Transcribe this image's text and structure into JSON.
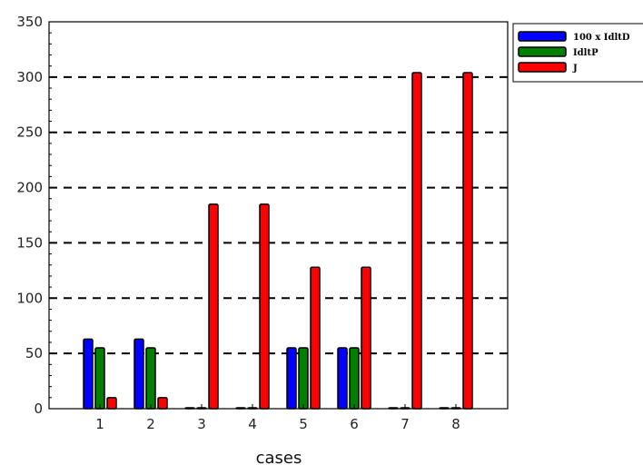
{
  "chart_data": {
    "type": "bar",
    "categories": [
      "1",
      "2",
      "3",
      "4",
      "5",
      "6",
      "7",
      "8"
    ],
    "series": [
      {
        "name": "100 x IdltD",
        "color": "#0000ff",
        "values": [
          63,
          63,
          0,
          0,
          55,
          55,
          0,
          0
        ]
      },
      {
        "name": "IdltP",
        "color": "#007f00",
        "values": [
          55,
          55,
          0,
          0,
          55,
          55,
          0,
          0
        ]
      },
      {
        "name": "J",
        "color": "#ff0000",
        "values": [
          10,
          10,
          185,
          185,
          128,
          128,
          304,
          304
        ]
      }
    ],
    "title": "",
    "xlabel": "cases",
    "ylabel": "",
    "ylim": [
      0,
      350
    ],
    "yticks": [
      0,
      50,
      100,
      150,
      200,
      250,
      300,
      350
    ],
    "grid": "horizontal dashed",
    "legend_position": "top-right outside"
  }
}
